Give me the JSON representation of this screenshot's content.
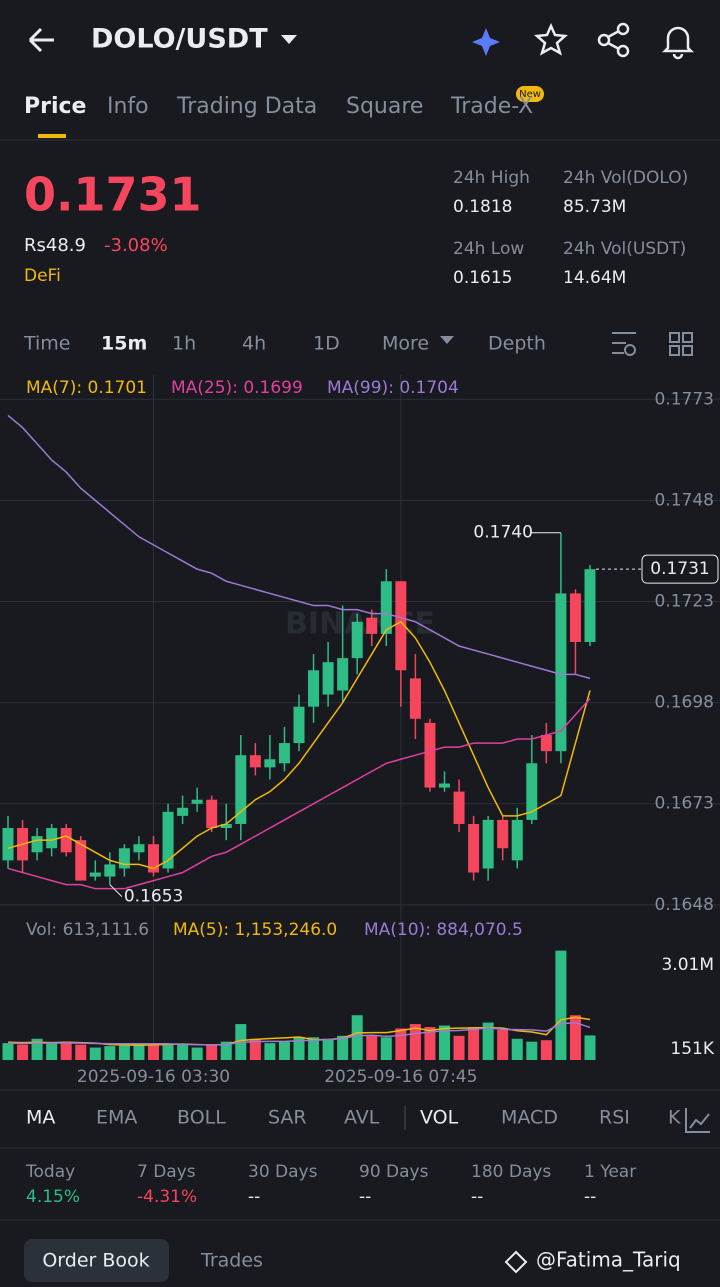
{
  "header": {
    "pair": "DOLO/USDT",
    "tabs": [
      "Price",
      "Info",
      "Trading Data",
      "Square",
      "Trade-X"
    ],
    "badge": "New"
  },
  "ticker": {
    "price": "0.1731",
    "fiat": "Rs48.9",
    "change": "-3.08%",
    "tag": "DeFi",
    "stats": [
      {
        "label": "24h High",
        "value": "0.1818"
      },
      {
        "label": "24h Vol(DOLO)",
        "value": "85.73M"
      },
      {
        "label": "24h Low",
        "value": "0.1615"
      },
      {
        "label": "24h Vol(USDT)",
        "value": "14.64M"
      }
    ]
  },
  "intervals": [
    "Time",
    "15m",
    "1h",
    "4h",
    "1D",
    "More",
    "Depth"
  ],
  "chart_data": {
    "type": "candlestick",
    "watermark": "BINANCE",
    "categories": [
      null,
      null,
      null,
      null,
      null,
      null,
      null,
      null,
      null,
      null,
      "2025-09-16 03:30",
      null,
      null,
      null,
      null,
      null,
      null,
      null,
      null,
      null,
      null,
      null,
      null,
      null,
      null,
      null,
      null,
      "2025-09-16 07:45",
      null,
      null,
      null,
      null,
      null,
      null,
      null,
      null,
      null,
      null,
      null,
      null,
      null
    ],
    "candles": [
      [
        0.1659,
        0.167,
        0.1657,
        0.1667
      ],
      [
        0.1667,
        0.1669,
        0.1656,
        0.1659
      ],
      [
        0.1661,
        0.1667,
        0.1659,
        0.1665
      ],
      [
        0.1662,
        0.1668,
        0.166,
        0.1667
      ],
      [
        0.1667,
        0.1668,
        0.166,
        0.1661
      ],
      [
        0.1664,
        0.1665,
        0.1654,
        0.1654
      ],
      [
        0.1655,
        0.1659,
        0.1654,
        0.1656
      ],
      [
        0.1655,
        0.1661,
        0.1653,
        0.1658
      ],
      [
        0.1657,
        0.1663,
        0.1655,
        0.1662
      ],
      [
        0.1661,
        0.1665,
        0.1659,
        0.1663
      ],
      [
        0.1663,
        0.1665,
        0.1655,
        0.1656
      ],
      [
        0.1657,
        0.1673,
        0.1656,
        0.1671
      ],
      [
        0.167,
        0.1675,
        0.1668,
        0.1672
      ],
      [
        0.1673,
        0.1677,
        0.1671,
        0.1674
      ],
      [
        0.1674,
        0.1675,
        0.1666,
        0.1667
      ],
      [
        0.1667,
        0.1673,
        0.1664,
        0.1668
      ],
      [
        0.1668,
        0.169,
        0.1664,
        0.1685
      ],
      [
        0.1685,
        0.1688,
        0.168,
        0.1682
      ],
      [
        0.1682,
        0.169,
        0.1679,
        0.1684
      ],
      [
        0.1683,
        0.1692,
        0.1681,
        0.1688
      ],
      [
        0.1688,
        0.17,
        0.1686,
        0.1697
      ],
      [
        0.1697,
        0.171,
        0.1693,
        0.1706
      ],
      [
        0.17,
        0.1713,
        0.1697,
        0.1708
      ],
      [
        0.1701,
        0.1722,
        0.1698,
        0.1709
      ],
      [
        0.1709,
        0.172,
        0.1705,
        0.1718
      ],
      [
        0.1719,
        0.1721,
        0.1712,
        0.1715
      ],
      [
        0.1715,
        0.1731,
        0.1712,
        0.1728
      ],
      [
        0.1728,
        0.1728,
        0.1697,
        0.1706
      ],
      [
        0.1704,
        0.171,
        0.1689,
        0.1694
      ],
      [
        0.1693,
        0.1694,
        0.1676,
        0.1677
      ],
      [
        0.1677,
        0.1681,
        0.1676,
        0.1678
      ],
      [
        0.1676,
        0.1679,
        0.1666,
        0.1668
      ],
      [
        0.1668,
        0.167,
        0.1654,
        0.1656
      ],
      [
        0.1657,
        0.167,
        0.1654,
        0.1669
      ],
      [
        0.1669,
        0.167,
        0.1659,
        0.1662
      ],
      [
        0.1659,
        0.1672,
        0.1657,
        0.1669
      ],
      [
        0.1669,
        0.169,
        0.1668,
        0.1683
      ],
      [
        0.169,
        0.1693,
        0.1683,
        0.1686
      ],
      [
        0.1686,
        0.174,
        0.1683,
        0.1725
      ],
      [
        0.1725,
        0.1726,
        0.1705,
        0.1713
      ],
      [
        0.1713,
        0.1732,
        0.1712,
        0.1731
      ]
    ],
    "up_color": "#2ebd85",
    "down_color": "#f6465d",
    "series": [
      {
        "name": "MA(7): 0.1701",
        "color": "#f0b90b",
        "values": [
          0.1662,
          0.1663,
          0.1664,
          0.1664,
          0.1665,
          0.1663,
          0.1661,
          0.1659,
          0.1658,
          0.1658,
          0.1657,
          0.1659,
          0.1662,
          0.1665,
          0.1667,
          0.1668,
          0.1671,
          0.1674,
          0.1676,
          0.1679,
          0.1683,
          0.1688,
          0.1693,
          0.1698,
          0.1704,
          0.171,
          0.1716,
          0.1718,
          0.1714,
          0.1708,
          0.1701,
          0.1693,
          0.1685,
          0.1677,
          0.167,
          0.167,
          0.1671,
          0.1673,
          0.1675,
          0.1688,
          0.1701
        ]
      },
      {
        "name": "MA(25): 0.1699",
        "color": "#e040a0",
        "values": [
          0.1657,
          0.1656,
          0.1655,
          0.1654,
          0.1653,
          0.1653,
          0.1652,
          0.1652,
          0.1652,
          0.1653,
          0.1654,
          0.1655,
          0.1656,
          0.1658,
          0.166,
          0.1661,
          0.1663,
          0.1665,
          0.1667,
          0.1669,
          0.1671,
          0.1673,
          0.1675,
          0.1677,
          0.1679,
          0.1681,
          0.1683,
          0.1684,
          0.1685,
          0.1686,
          0.1687,
          0.1687,
          0.1688,
          0.1688,
          0.1688,
          0.1689,
          0.1689,
          0.169,
          0.1691,
          0.1695,
          0.1699
        ]
      },
      {
        "name": "MA(99): 0.1704",
        "color": "#9c7ad6",
        "values": [
          0.1769,
          0.1766,
          0.1762,
          0.1758,
          0.1755,
          0.1751,
          0.1748,
          0.1745,
          0.1742,
          0.1739,
          0.1737,
          0.1735,
          0.1733,
          0.1731,
          0.173,
          0.1728,
          0.1727,
          0.1726,
          0.1725,
          0.1724,
          0.1723,
          0.1722,
          0.1722,
          0.1721,
          0.1721,
          0.172,
          0.172,
          0.1719,
          0.1718,
          0.1716,
          0.1714,
          0.1712,
          0.1711,
          0.171,
          0.1709,
          0.1708,
          0.1707,
          0.1706,
          0.1705,
          0.1705,
          0.1704
        ]
      }
    ],
    "ylim": [
      0.1645,
      0.1779
    ],
    "yticks": [
      0.1773,
      0.1748,
      0.1723,
      0.1698,
      0.1673,
      0.1648
    ],
    "grid": true,
    "last_price": 0.1731,
    "max_label": "0.1740",
    "min_label": "0.1653",
    "volume": {
      "name": "Vol: 613,111.6",
      "values": [
        350000,
        300000,
        500000,
        350000,
        400000,
        300000,
        200000,
        250000,
        300000,
        350000,
        350000,
        300000,
        300000,
        200000,
        300000,
        400000,
        1000000,
        500000,
        350000,
        400000,
        550000,
        550000,
        500000,
        600000,
        1300000,
        600000,
        550000,
        850000,
        1000000,
        900000,
        950000,
        600000,
        900000,
        1050000,
        800000,
        500000,
        400000,
        450000,
        3500000,
        1300000,
        613111.6
      ],
      "series": [
        {
          "name": "MA(5): 1,153,246.0",
          "color": "#f0b90b",
          "values": [
            380000,
            370000,
            380000,
            370000,
            380000,
            370000,
            350000,
            300000,
            290000,
            280000,
            290000,
            310000,
            320000,
            300000,
            290000,
            300000,
            440000,
            480000,
            510000,
            530000,
            560000,
            470000,
            470000,
            520000,
            700000,
            710000,
            710000,
            780000,
            860000,
            780000,
            850000,
            860000,
            870000,
            880000,
            860000,
            770000,
            730000,
            640000,
            1140000,
            1230000,
            1153246
          ]
        },
        {
          "name": "MA(10): 884,070.5",
          "color": "#9c7ad6",
          "values": [
            350000,
            340000,
            350000,
            350000,
            360000,
            350000,
            340000,
            330000,
            330000,
            330000,
            330000,
            330000,
            310000,
            300000,
            290000,
            300000,
            380000,
            400000,
            410000,
            410000,
            430000,
            450000,
            470000,
            510000,
            600000,
            620000,
            580000,
            610000,
            680000,
            730000,
            770000,
            780000,
            820000,
            870000,
            820000,
            810000,
            800000,
            760000,
            1010000,
            1050000,
            884070.5
          ]
        }
      ],
      "yticks": [
        {
          "value": 3010000,
          "label": "3.01M"
        },
        {
          "value": 151000,
          "label": "151K"
        }
      ]
    }
  },
  "indicators": [
    "MA",
    "EMA",
    "BOLL",
    "SAR",
    "AVL",
    "VOL",
    "MACD",
    "RSI",
    "K"
  ],
  "periods": [
    {
      "label": "Today",
      "value": "4.15%"
    },
    {
      "label": "7 Days",
      "value": "-4.31%"
    },
    {
      "label": "30 Days",
      "value": "--"
    },
    {
      "label": "90 Days",
      "value": "--"
    },
    {
      "label": "180 Days",
      "value": "--"
    },
    {
      "label": "1 Year",
      "value": "--"
    }
  ],
  "footer": {
    "tabs": [
      "Order Book",
      "Trades"
    ],
    "credit": "@Fatima_Tariq"
  }
}
